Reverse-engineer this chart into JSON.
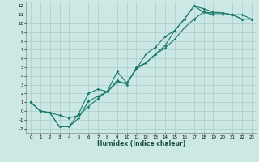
{
  "xlabel": "Humidex (Indice chaleur)",
  "ylabel": "",
  "bg_color": "#cce8e4",
  "grid_color": "#aaccca",
  "line_color": "#1a7a6e",
  "xlim": [
    -0.5,
    23.5
  ],
  "ylim": [
    -2.5,
    12.5
  ],
  "xticks": [
    0,
    1,
    2,
    3,
    4,
    5,
    6,
    7,
    8,
    9,
    10,
    11,
    12,
    13,
    14,
    15,
    16,
    17,
    18,
    19,
    20,
    21,
    22,
    23
  ],
  "yticks": [
    -2,
    -1,
    0,
    1,
    2,
    3,
    4,
    5,
    6,
    7,
    8,
    9,
    10,
    11,
    12
  ],
  "line1_x": [
    0,
    1,
    2,
    3,
    4,
    5,
    6,
    7,
    8,
    9,
    10,
    11,
    12,
    13,
    14,
    15,
    16,
    17,
    18,
    19,
    20,
    21,
    22,
    23
  ],
  "line1_y": [
    1,
    0,
    -0.2,
    -1.8,
    -1.8,
    -0.8,
    1.1,
    1.7,
    2.2,
    3.3,
    3.2,
    4.8,
    5.5,
    6.5,
    7.2,
    8.2,
    9.5,
    10.5,
    11.3,
    11.2,
    11.2,
    11.0,
    11.0,
    10.5
  ],
  "line2_x": [
    0,
    1,
    2,
    3,
    4,
    5,
    6,
    7,
    8,
    9,
    10,
    11,
    12,
    13,
    14,
    15,
    16,
    17,
    18,
    19,
    20,
    21,
    22,
    23
  ],
  "line2_y": [
    1,
    0,
    -0.2,
    -0.5,
    -0.8,
    -0.5,
    0.5,
    1.4,
    2.3,
    4.5,
    3.2,
    4.8,
    6.5,
    7.3,
    8.5,
    9.2,
    10.5,
    12.0,
    11.7,
    11.3,
    11.2,
    11.0,
    10.5,
    10.5
  ],
  "line3_x": [
    0,
    1,
    2,
    3,
    4,
    5,
    6,
    7,
    8,
    9,
    10,
    11,
    12,
    13,
    14,
    15,
    16,
    17,
    18,
    19,
    20,
    21,
    22,
    23
  ],
  "line3_y": [
    1,
    0,
    -0.2,
    -1.8,
    -1.8,
    -0.3,
    2.0,
    2.5,
    2.2,
    3.5,
    3.0,
    5.0,
    5.5,
    6.5,
    7.5,
    9.2,
    10.5,
    12.0,
    11.3,
    11.0,
    11.0,
    11.0,
    10.5,
    10.5
  ]
}
